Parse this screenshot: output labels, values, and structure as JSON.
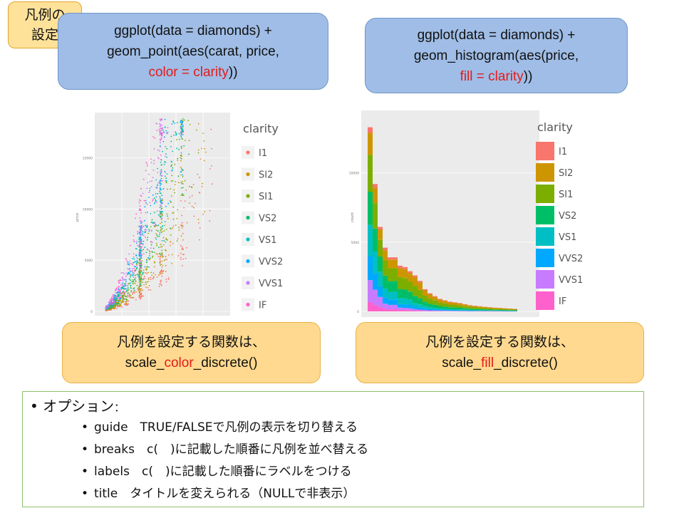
{
  "tag": {
    "line1": "凡例の",
    "line2": "設定"
  },
  "code_left": {
    "line1": "ggplot(data = diamonds) +",
    "line2": "geom_point(aes(carat, price,",
    "line3_red": "color = clarity",
    "line3_rest": "))"
  },
  "code_right": {
    "line1": "ggplot(data = diamonds) +",
    "line2": "geom_histogram(aes(price,",
    "line3_red": "fill = clarity",
    "line3_rest": "))"
  },
  "legend": {
    "title": "clarity",
    "items": [
      "I1",
      "SI2",
      "SI1",
      "VS2",
      "VS1",
      "VVS2",
      "VVS1",
      "IF"
    ],
    "colors": [
      "#f8766d",
      "#cd9600",
      "#7cae00",
      "#00be67",
      "#00bfc4",
      "#00a9ff",
      "#c77cff",
      "#ff61cc"
    ]
  },
  "scatter": {
    "ylabel": "price",
    "yticks": [
      "0",
      "5000",
      "10000",
      "15000"
    ]
  },
  "histogram": {
    "ylabel": "count",
    "yticks": [
      "0",
      "5000",
      "10000"
    ]
  },
  "note_left": {
    "line1": "凡例を設定する関数は、",
    "pre": "scale_",
    "red": "color",
    "post": "_discrete()"
  },
  "note_right": {
    "line1": "凡例を設定する関数は、",
    "pre": "scale_",
    "red": "fill",
    "post": "_discrete()"
  },
  "options": {
    "title": "オプション",
    "colon": "：",
    "items": [
      "guide　TRUE/FALSEで凡例の表示を切り替える",
      "breaks　c(　)に記載した順番に凡例を並べ替える",
      "labels　c(　)に記載した順番にラベルをつける",
      "title　タイトルを変えられる（NULLで非表示）"
    ]
  },
  "chart_data": [
    {
      "type": "scatter",
      "xlabel": "",
      "ylabel": "price",
      "ylim": [
        0,
        19000
      ],
      "yticks": [
        0,
        5000,
        10000,
        15000
      ],
      "series_by": "clarity",
      "legend": [
        "I1",
        "SI2",
        "SI1",
        "VS2",
        "VS1",
        "VVS2",
        "VVS1",
        "IF"
      ]
    },
    {
      "type": "bar",
      "xlabel": "",
      "ylabel": "count",
      "ylim": [
        0,
        14000
      ],
      "yticks": [
        0,
        5000,
        10000
      ],
      "totals": [
        13300,
        9200,
        6100,
        4600,
        3900,
        3900,
        3300,
        3200,
        2900,
        2600,
        2200,
        1600,
        1300,
        1100,
        900,
        800,
        700,
        650,
        600,
        520,
        450,
        400,
        370,
        330,
        300,
        270,
        250,
        220,
        200,
        180
      ],
      "series_by": "clarity",
      "legend": [
        "I1",
        "SI2",
        "SI1",
        "VS2",
        "VS1",
        "VVS2",
        "VVS1",
        "IF"
      ]
    }
  ]
}
